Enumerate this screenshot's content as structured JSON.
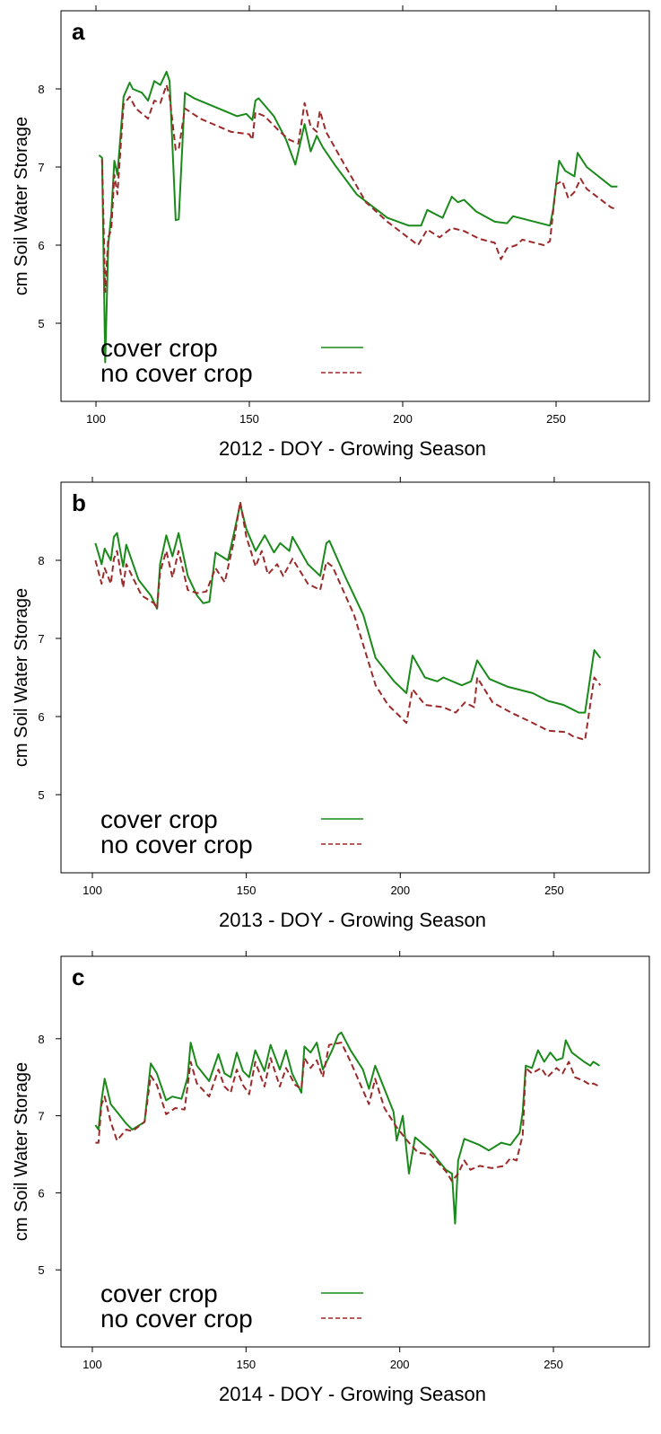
{
  "chart_data": [
    {
      "type": "line",
      "title": "a",
      "xlabel": "2012 - DOY - Growing Season",
      "ylabel": "cm Soil Water Storage",
      "xlim": [
        88.6,
        280.4
      ],
      "ylim": [
        4,
        9
      ],
      "xticks": [
        100,
        150,
        200,
        250
      ],
      "yticks": [
        5,
        6,
        7,
        8
      ],
      "legend": "lower left",
      "series": [
        {
          "name": "cover crop",
          "color": "#1a8a1a",
          "dashed": false,
          "x": [
            101,
            102,
            103,
            104,
            105,
            106,
            107,
            109,
            111,
            112,
            115,
            117,
            119,
            121,
            123,
            124,
            126,
            127,
            129,
            132,
            140,
            146,
            149,
            151,
            152,
            153,
            158,
            162,
            165,
            168,
            170,
            172,
            174,
            178,
            185,
            195,
            202,
            206,
            208,
            213,
            216,
            218,
            220,
            224,
            230,
            234,
            236,
            248,
            249,
            251,
            253,
            256,
            257,
            260,
            268,
            270
          ],
          "values": [
            7.15,
            7.12,
            4.5,
            6.0,
            6.4,
            7.08,
            6.9,
            7.9,
            8.08,
            8.0,
            7.95,
            7.85,
            8.1,
            8.05,
            8.22,
            8.1,
            6.32,
            6.33,
            7.95,
            7.88,
            7.75,
            7.65,
            7.68,
            7.6,
            7.85,
            7.88,
            7.65,
            7.35,
            7.03,
            7.55,
            7.2,
            7.4,
            7.25,
            7.02,
            6.65,
            6.35,
            6.25,
            6.25,
            6.45,
            6.35,
            6.62,
            6.55,
            6.58,
            6.43,
            6.3,
            6.28,
            6.37,
            6.25,
            6.45,
            7.08,
            6.95,
            6.88,
            7.18,
            7.0,
            6.75,
            6.75
          ]
        },
        {
          "name": "no cover crop",
          "color": "#9b2a2a",
          "dashed": true,
          "x": [
            102,
            103,
            104,
            105,
            106,
            107,
            109,
            111,
            113,
            117,
            119,
            121,
            123,
            124,
            126,
            127,
            129,
            134,
            144,
            150,
            151,
            152,
            155,
            160,
            163,
            166,
            168,
            170,
            172,
            173,
            175,
            180,
            188,
            195,
            205,
            208,
            212,
            216,
            220,
            225,
            230,
            232,
            234,
            237,
            239,
            246,
            248,
            250,
            252,
            254,
            256,
            258,
            260,
            268,
            270
          ],
          "values": [
            7.1,
            5.4,
            6.1,
            6.2,
            6.9,
            6.65,
            7.8,
            7.9,
            7.75,
            7.62,
            7.85,
            7.82,
            8.05,
            7.9,
            7.22,
            7.23,
            7.75,
            7.62,
            7.45,
            7.42,
            7.35,
            7.7,
            7.65,
            7.45,
            7.35,
            7.3,
            7.82,
            7.52,
            7.45,
            7.72,
            7.45,
            7.1,
            6.55,
            6.3,
            6.0,
            6.2,
            6.1,
            6.22,
            6.18,
            6.08,
            6.03,
            5.82,
            5.96,
            6.0,
            6.07,
            6.0,
            6.05,
            6.78,
            6.82,
            6.6,
            6.68,
            6.85,
            6.72,
            6.48,
            6.46
          ]
        }
      ]
    },
    {
      "type": "line",
      "title": "b",
      "xlabel": "2013 - DOY - Growing Season",
      "ylabel": "cm Soil Water Storage",
      "xlim": [
        89.8,
        280.9
      ],
      "ylim": [
        4,
        9
      ],
      "xticks": [
        100,
        150,
        200,
        250
      ],
      "yticks": [
        5,
        6,
        7,
        8
      ],
      "legend": "lower left",
      "series": [
        {
          "name": "cover crop",
          "color": "#1a8a1a",
          "dashed": false,
          "x": [
            101,
            103,
            104,
            106,
            107,
            108,
            110,
            111,
            115,
            119,
            121,
            122,
            124,
            126,
            128,
            131,
            134,
            136,
            138,
            140,
            142,
            144,
            146,
            148,
            150,
            153,
            156,
            159,
            161,
            164,
            165,
            170,
            174,
            176,
            177,
            182,
            188,
            192,
            198,
            202,
            204,
            208,
            212,
            214,
            220,
            223,
            225,
            229,
            235,
            243,
            248,
            253,
            258,
            260,
            263,
            265
          ],
          "values": [
            8.22,
            7.95,
            8.15,
            8.0,
            8.3,
            8.35,
            7.92,
            8.2,
            7.75,
            7.55,
            7.38,
            7.95,
            8.32,
            8.05,
            8.35,
            7.8,
            7.55,
            7.45,
            7.47,
            8.1,
            8.05,
            8.0,
            8.35,
            8.72,
            8.4,
            8.12,
            8.32,
            8.1,
            8.22,
            8.12,
            8.3,
            7.95,
            7.8,
            8.22,
            8.25,
            7.8,
            7.3,
            6.75,
            6.45,
            6.3,
            6.78,
            6.5,
            6.45,
            6.5,
            6.4,
            6.45,
            6.72,
            6.48,
            6.38,
            6.3,
            6.2,
            6.15,
            6.05,
            6.05,
            6.85,
            6.75
          ]
        },
        {
          "name": "no cover crop",
          "color": "#9b2a2a",
          "dashed": true,
          "x": [
            101,
            103,
            104,
            106,
            107,
            108,
            110,
            111,
            116,
            120,
            121,
            122,
            124,
            126,
            128,
            131,
            134,
            137,
            140,
            143,
            146,
            148,
            150,
            153,
            155,
            157,
            160,
            162,
            165,
            170,
            174,
            176,
            178,
            185,
            192,
            196,
            202,
            204,
            208,
            214,
            218,
            221,
            224,
            225,
            230,
            236,
            243,
            248,
            254,
            256,
            260,
            263,
            265
          ],
          "values": [
            8.0,
            7.7,
            7.9,
            7.7,
            8.02,
            8.12,
            7.65,
            7.95,
            7.55,
            7.45,
            7.38,
            7.85,
            8.12,
            7.78,
            8.12,
            7.62,
            7.58,
            7.6,
            7.9,
            7.72,
            8.25,
            8.75,
            8.3,
            7.92,
            8.12,
            7.82,
            7.95,
            7.8,
            8.02,
            7.7,
            7.62,
            7.98,
            7.92,
            7.3,
            6.4,
            6.15,
            5.92,
            6.35,
            6.15,
            6.12,
            6.05,
            6.18,
            6.12,
            6.5,
            6.18,
            6.05,
            5.92,
            5.82,
            5.8,
            5.75,
            5.7,
            6.5,
            6.4
          ]
        }
      ]
    },
    {
      "type": "line",
      "title": "c",
      "xlabel": "2014 - DOY - Growing Season",
      "ylabel": "cm Soil Water Storage",
      "xlim": [
        89.8,
        281.2
      ],
      "ylim": [
        4,
        9.07
      ],
      "xticks": [
        100,
        150,
        200,
        250
      ],
      "yticks": [
        5,
        6,
        7,
        8
      ],
      "legend": "lower left",
      "series": [
        {
          "name": "cover crop",
          "color": "#1a8a1a",
          "dashed": false,
          "x": [
            101,
            102,
            103,
            104,
            106,
            108,
            111,
            113,
            117,
            119,
            121,
            124,
            126,
            129,
            131,
            132,
            134,
            138,
            141,
            143,
            145,
            147,
            149,
            151,
            153,
            156,
            158,
            161,
            163,
            165,
            168,
            169,
            171,
            173,
            175,
            178,
            180,
            181,
            184,
            188,
            190,
            192,
            195,
            198,
            199,
            201,
            203,
            205,
            210,
            215,
            217,
            218,
            219,
            221,
            226,
            229,
            233,
            236,
            239,
            240,
            241,
            243,
            245,
            247,
            249,
            251,
            253,
            254,
            256,
            260,
            262,
            263,
            265
          ],
          "values": [
            6.88,
            6.82,
            7.2,
            7.48,
            7.15,
            7.05,
            6.9,
            6.82,
            6.92,
            7.68,
            7.55,
            7.2,
            7.25,
            7.22,
            7.5,
            7.95,
            7.65,
            7.45,
            7.8,
            7.55,
            7.5,
            7.82,
            7.58,
            7.5,
            7.85,
            7.58,
            7.92,
            7.6,
            7.85,
            7.55,
            7.3,
            7.9,
            7.82,
            7.95,
            7.6,
            7.85,
            8.05,
            8.08,
            7.85,
            7.6,
            7.35,
            7.65,
            7.35,
            7.05,
            6.68,
            7.0,
            6.25,
            6.72,
            6.55,
            6.3,
            6.25,
            5.6,
            6.42,
            6.7,
            6.62,
            6.55,
            6.65,
            6.62,
            6.78,
            7.05,
            7.65,
            7.62,
            7.85,
            7.7,
            7.82,
            7.72,
            7.75,
            7.98,
            7.82,
            7.7,
            7.65,
            7.7,
            7.65
          ]
        },
        {
          "name": "no cover crop",
          "color": "#9b2a2a",
          "dashed": true,
          "x": [
            101,
            102,
            103,
            104,
            106,
            108,
            111,
            113,
            117,
            119,
            121,
            124,
            127,
            130,
            132,
            134,
            138,
            141,
            143,
            145,
            147,
            149,
            151,
            153,
            156,
            158,
            161,
            163,
            166,
            168,
            169,
            171,
            173,
            175,
            177,
            181,
            184,
            190,
            192,
            195,
            199,
            203,
            206,
            210,
            215,
            217,
            219,
            221,
            223,
            226,
            230,
            234,
            236,
            238,
            240,
            241,
            243,
            246,
            248,
            251,
            253,
            255,
            257,
            260,
            262,
            263,
            265
          ],
          "values": [
            6.65,
            6.65,
            7.15,
            7.25,
            6.92,
            6.68,
            6.82,
            6.8,
            6.92,
            7.52,
            7.4,
            7.02,
            7.1,
            7.08,
            7.7,
            7.42,
            7.25,
            7.6,
            7.38,
            7.3,
            7.6,
            7.4,
            7.28,
            7.7,
            7.38,
            7.75,
            7.38,
            7.62,
            7.4,
            7.35,
            7.75,
            7.62,
            7.72,
            7.5,
            7.92,
            7.95,
            7.7,
            7.15,
            7.48,
            7.1,
            6.85,
            6.65,
            6.52,
            6.5,
            6.28,
            6.15,
            6.25,
            6.42,
            6.3,
            6.35,
            6.32,
            6.35,
            6.45,
            6.42,
            6.75,
            7.62,
            7.55,
            7.62,
            7.5,
            7.62,
            7.55,
            7.7,
            7.5,
            7.45,
            7.4,
            7.42,
            7.38
          ]
        }
      ]
    }
  ]
}
